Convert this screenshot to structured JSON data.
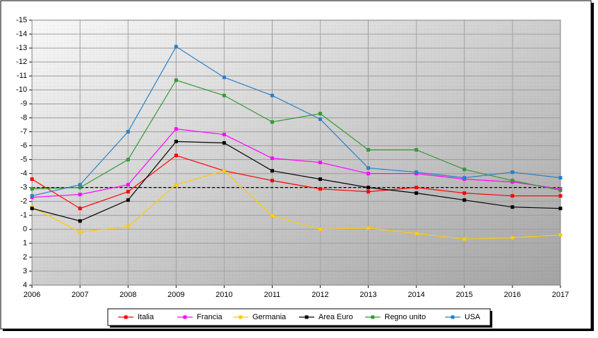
{
  "chart_data": {
    "type": "line",
    "categories": [
      "2006",
      "2007",
      "2008",
      "2009",
      "2010",
      "2011",
      "2012",
      "2013",
      "2014",
      "2015",
      "2016",
      "2017"
    ],
    "series": [
      {
        "name": "Italia",
        "color": "#ff0000",
        "values": [
          -3.6,
          -1.5,
          -2.7,
          -5.3,
          -4.2,
          -3.5,
          -2.9,
          -2.7,
          -3.0,
          -2.6,
          -2.4,
          -2.4
        ]
      },
      {
        "name": "Francia",
        "color": "#ff00ff",
        "values": [
          -2.3,
          -2.5,
          -3.2,
          -7.2,
          -6.8,
          -5.1,
          -4.8,
          -4.0,
          -4.0,
          -3.6,
          -3.4,
          -2.9
        ]
      },
      {
        "name": "Germania",
        "color": "#ffcc00",
        "values": [
          -1.6,
          0.2,
          -0.2,
          -3.2,
          -4.2,
          -1.0,
          0.0,
          -0.1,
          0.3,
          0.7,
          0.6,
          0.4
        ]
      },
      {
        "name": "Area Euro",
        "color": "#000000",
        "values": [
          -1.5,
          -0.6,
          -2.1,
          -6.3,
          -6.2,
          -4.2,
          -3.6,
          -3.0,
          -2.6,
          -2.1,
          -1.6,
          -1.5
        ]
      },
      {
        "name": "Regno unito",
        "color": "#339933",
        "values": [
          -2.9,
          -3.0,
          -5.0,
          -10.7,
          -9.6,
          -7.7,
          -8.3,
          -5.7,
          -5.7,
          -4.3,
          -3.5,
          -2.8
        ]
      },
      {
        "name": "USA",
        "color": "#2a7fc4",
        "values": [
          -2.4,
          -3.2,
          -7.0,
          -13.1,
          -10.9,
          -9.6,
          -7.9,
          -4.4,
          -4.1,
          -3.7,
          -4.1,
          -3.7
        ]
      }
    ],
    "ylim": [
      4,
      -15
    ],
    "yticks": [
      -15,
      -14,
      -13,
      -12,
      -11,
      -10,
      -9,
      -8,
      -7,
      -6,
      -5,
      -4,
      -3,
      -2,
      -1,
      0,
      1,
      2,
      3,
      4
    ],
    "reference_line": -3,
    "grid": true
  }
}
